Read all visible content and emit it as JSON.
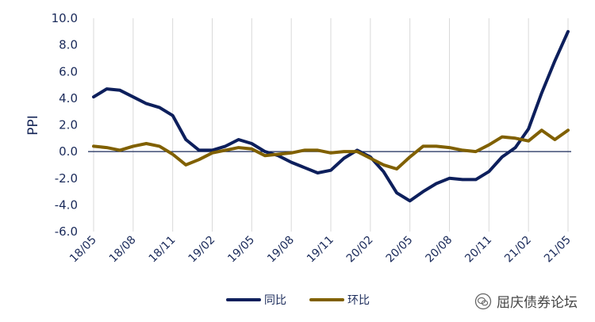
{
  "chart_data": {
    "type": "line",
    "ylabel": "PPI",
    "ylim": [
      -6.0,
      10.0
    ],
    "yticks": [
      "10.0",
      "8.0",
      "6.0",
      "4.0",
      "2.0",
      "0.0",
      "-2.0",
      "-4.0",
      "-6.0"
    ],
    "xticks": [
      "18/05",
      "18/08",
      "18/11",
      "19/02",
      "19/05",
      "19/08",
      "19/11",
      "20/02",
      "20/05",
      "20/08",
      "20/11",
      "21/02",
      "21/05"
    ],
    "x": [
      "18/05",
      "18/06",
      "18/07",
      "18/08",
      "18/09",
      "18/10",
      "18/11",
      "18/12",
      "19/01",
      "19/02",
      "19/03",
      "19/04",
      "19/05",
      "19/06",
      "19/07",
      "19/08",
      "19/09",
      "19/10",
      "19/11",
      "19/12",
      "20/01",
      "20/02",
      "20/03",
      "20/04",
      "20/05",
      "20/06",
      "20/07",
      "20/08",
      "20/09",
      "20/10",
      "20/11",
      "20/12",
      "21/01",
      "21/02",
      "21/03",
      "21/04",
      "21/05"
    ],
    "series": [
      {
        "name": "同比",
        "color": "#0d1f5c",
        "values": [
          4.1,
          4.7,
          4.6,
          4.1,
          3.6,
          3.3,
          2.7,
          0.9,
          0.1,
          0.1,
          0.4,
          0.9,
          0.6,
          0.0,
          -0.3,
          -0.8,
          -1.2,
          -1.6,
          -1.4,
          -0.5,
          0.1,
          -0.4,
          -1.5,
          -3.1,
          -3.7,
          -3.0,
          -2.4,
          -2.0,
          -2.1,
          -2.1,
          -1.5,
          -0.4,
          0.3,
          1.7,
          4.4,
          6.8,
          9.0
        ]
      },
      {
        "name": "环比",
        "color": "#806000",
        "values": [
          0.4,
          0.3,
          0.1,
          0.4,
          0.6,
          0.4,
          -0.2,
          -1.0,
          -0.6,
          -0.1,
          0.1,
          0.3,
          0.2,
          -0.3,
          -0.2,
          -0.1,
          0.1,
          0.1,
          -0.1,
          0.0,
          0.0,
          -0.5,
          -1.0,
          -1.3,
          -0.4,
          0.4,
          0.4,
          0.3,
          0.1,
          0.0,
          0.5,
          1.1,
          1.0,
          0.8,
          1.6,
          0.9,
          1.6
        ]
      }
    ]
  },
  "watermark": {
    "text": "屈庆债券论坛",
    "icon": "wechat-icon"
  }
}
